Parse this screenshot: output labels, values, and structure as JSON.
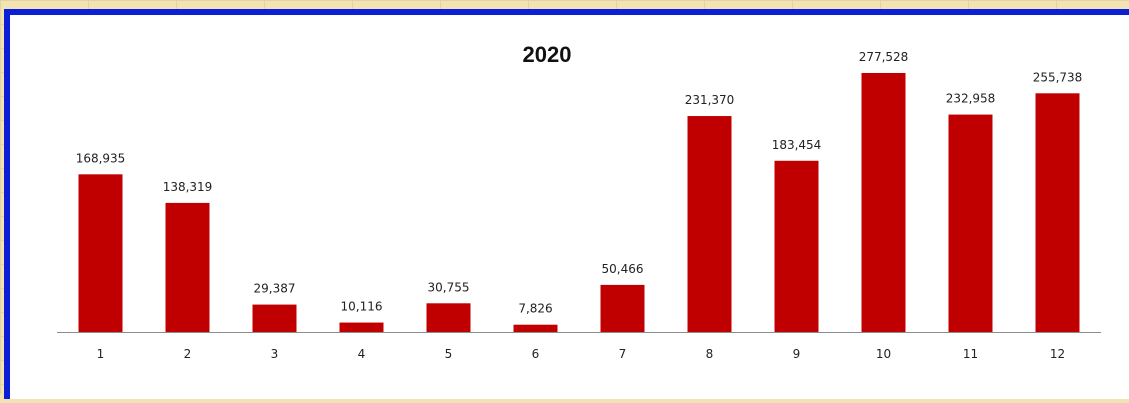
{
  "chart_data": {
    "type": "bar",
    "title": "2020",
    "categories": [
      "1",
      "2",
      "3",
      "4",
      "5",
      "6",
      "7",
      "8",
      "9",
      "10",
      "11",
      "12"
    ],
    "values": [
      168935,
      138319,
      29387,
      10116,
      30755,
      7826,
      50466,
      231370,
      183454,
      277528,
      232958,
      255738
    ],
    "data_labels": [
      "168,935",
      "138,319",
      "29,387",
      "10,116",
      "30,755",
      "7,826",
      "50,466",
      "231,370",
      "183,454",
      "277,528",
      "232,958",
      "255,738"
    ],
    "xlabel": "",
    "ylabel": "",
    "ylim": [
      0,
      300000
    ],
    "grid": false,
    "legend": "none",
    "bar_color": "#c00000"
  },
  "colors": {
    "frame": "#0a1fd6",
    "background": "#f3e3b4"
  }
}
